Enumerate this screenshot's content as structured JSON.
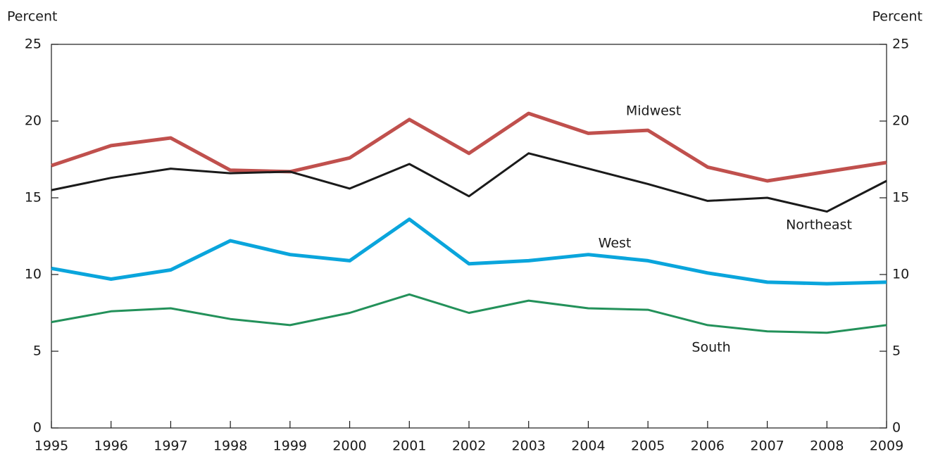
{
  "chart_data": {
    "type": "line",
    "y_label": "Percent",
    "y2_label": "Percent",
    "x": [
      1995,
      1996,
      1997,
      1998,
      1999,
      2000,
      2001,
      2002,
      2003,
      2004,
      2005,
      2006,
      2007,
      2008,
      2009
    ],
    "xlim": [
      1995,
      2009
    ],
    "xticks": [
      1995,
      1996,
      1997,
      1998,
      1999,
      2000,
      2001,
      2002,
      2003,
      2004,
      2005,
      2006,
      2007,
      2008,
      2009
    ],
    "ylim": [
      0,
      25
    ],
    "yticks": [
      0,
      5,
      10,
      15,
      20,
      25
    ],
    "y2lim": [
      0,
      25
    ],
    "y2ticks": [
      0,
      5,
      10,
      15,
      20,
      25
    ],
    "grid": false,
    "series": [
      {
        "name": "Midwest",
        "color": "#c0504d",
        "width": 5,
        "values": [
          17.1,
          18.4,
          18.9,
          16.8,
          16.7,
          17.6,
          20.1,
          17.9,
          20.5,
          19.2,
          19.4,
          17.0,
          16.1,
          16.7,
          17.3
        ]
      },
      {
        "name": "Northeast",
        "color": "#1a1a1a",
        "width": 3,
        "values": [
          15.5,
          16.3,
          16.9,
          16.6,
          16.7,
          15.6,
          17.2,
          15.1,
          17.9,
          16.9,
          15.9,
          14.8,
          15.0,
          14.1,
          16.1
        ]
      },
      {
        "name": "West",
        "color": "#0aa5dc",
        "width": 5,
        "values": [
          10.4,
          9.7,
          10.3,
          12.2,
          11.3,
          10.9,
          13.6,
          10.7,
          10.9,
          11.3,
          10.9,
          10.1,
          9.5,
          9.4,
          9.5
        ]
      },
      {
        "name": "South",
        "color": "#23915a",
        "width": 3,
        "values": [
          6.9,
          7.6,
          7.8,
          7.1,
          6.7,
          7.5,
          8.7,
          7.5,
          8.3,
          7.8,
          7.7,
          6.7,
          6.3,
          6.2,
          6.7
        ]
      }
    ]
  }
}
